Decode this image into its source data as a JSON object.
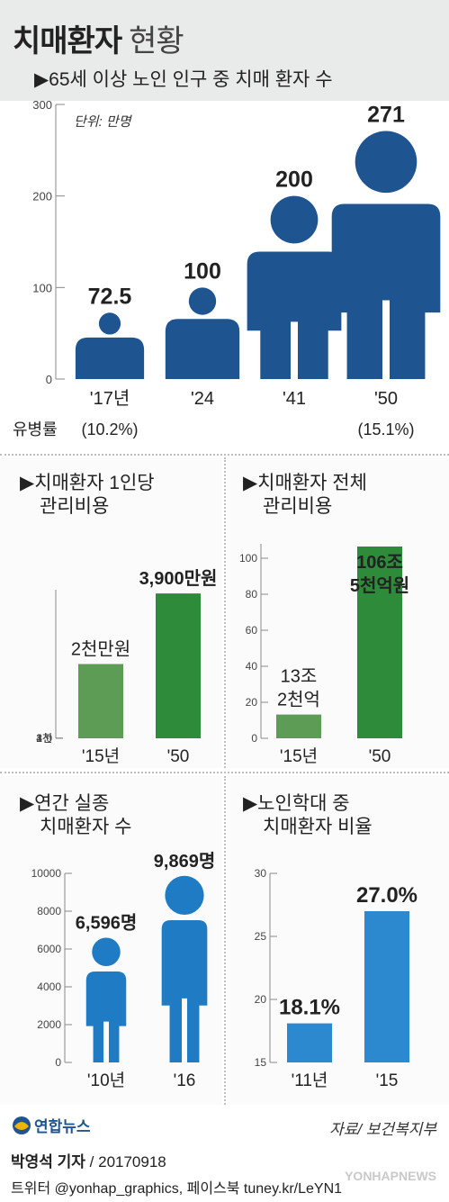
{
  "header": {
    "title_bold": "치매환자",
    "title_light": "현황"
  },
  "chart_data": [
    {
      "type": "bar",
      "subtitle": "65세 이상 노인 인구 중 치매 환자 수",
      "unit": "단위: 만명",
      "categories": [
        "'17년",
        "'24",
        "'41",
        "'50"
      ],
      "values": [
        72.5,
        100,
        200,
        271
      ],
      "value_labels": [
        "72.5",
        "100",
        "200",
        "271"
      ],
      "yticks": [
        "0",
        "100",
        "200",
        "300"
      ],
      "ylim": [
        0,
        300
      ],
      "extra_label": "유병률",
      "extra_values": [
        "(10.2%)",
        "",
        "",
        "(15.1%)"
      ],
      "color": "#1e5591"
    },
    {
      "type": "bar",
      "title_lines": [
        "치매환자 1인당",
        "관리비용"
      ],
      "categories": [
        "'15년",
        "'50"
      ],
      "values": [
        2000,
        3900
      ],
      "value_labels": [
        "2천만원",
        "3,900만원"
      ],
      "yticks": [
        "0",
        "1천",
        "2천",
        "3천",
        "4천"
      ],
      "ylim": [
        0,
        4000
      ],
      "colors": [
        "#5c9c55",
        "#2e8b3a"
      ]
    },
    {
      "type": "bar",
      "title_lines": [
        "치매환자 전체",
        "관리비용"
      ],
      "categories": [
        "'15년",
        "'50"
      ],
      "values": [
        13.2,
        106.5
      ],
      "value_labels": [
        "13조 2천억",
        "106조 5천억원"
      ],
      "yticks": [
        "0",
        "20",
        "40",
        "60",
        "80",
        "100"
      ],
      "ylim": [
        0,
        108
      ],
      "colors": [
        "#5c9c55",
        "#2e8b3a"
      ]
    },
    {
      "type": "bar",
      "title_lines": [
        "연간 실종",
        "치매환자 수"
      ],
      "categories": [
        "'10년",
        "'16"
      ],
      "values": [
        6596,
        9869
      ],
      "value_labels": [
        "6,596명",
        "9,869명"
      ],
      "yticks": [
        "0",
        "2000",
        "4000",
        "6000",
        "8000",
        "10000"
      ],
      "ylim": [
        0,
        10000
      ],
      "color": "#1f7cc4"
    },
    {
      "type": "bar",
      "title_lines": [
        "노인학대 중",
        "치매환자 비율"
      ],
      "categories": [
        "'11년",
        "'15"
      ],
      "values": [
        18.1,
        27.0
      ],
      "value_labels": [
        "18.1%",
        "27.0%"
      ],
      "yticks": [
        "15",
        "20",
        "25",
        "30"
      ],
      "ylim": [
        15,
        30
      ],
      "color": "#2c88cf"
    }
  ],
  "footer": {
    "logo_text": "연합뉴스",
    "source": "자료/ 보건복지부",
    "reporter": "박영석 기자",
    "date": "/ 20170918",
    "social": "트위터 @yonhap_graphics, 페이스북 tuney.kr/LeYN1",
    "watermark": "YONHAPNEWS"
  }
}
